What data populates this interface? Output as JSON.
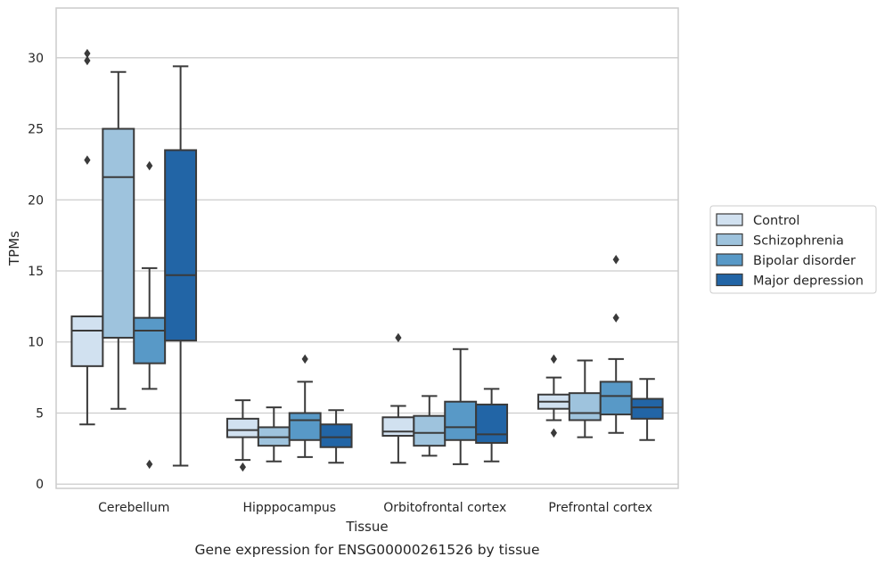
{
  "chart_data": {
    "type": "boxplot",
    "caption": "Gene expression for ENSG00000261526 by tissue",
    "xlabel": "Tissue",
    "ylabel": "TPMs",
    "ylim": [
      -0.3,
      33.5
    ],
    "yticks": [
      0,
      5,
      10,
      15,
      20,
      25,
      30
    ],
    "grid": "horizontal",
    "legend_position": "right",
    "categories": [
      "Cerebellum",
      "Hipppocampus",
      "Orbitofrontal cortex",
      "Prefrontal cortex"
    ],
    "series": [
      {
        "name": "Control",
        "color": "#d1e1f0",
        "boxes": [
          {
            "whisker_low": 4.2,
            "q1": 8.3,
            "median": 10.8,
            "q3": 11.8,
            "whisker_high": 11.8,
            "outliers": [
              30.3,
              29.8,
              22.8
            ]
          },
          {
            "whisker_low": 1.7,
            "q1": 3.3,
            "median": 3.8,
            "q3": 4.6,
            "whisker_high": 5.9,
            "outliers": [
              1.2
            ]
          },
          {
            "whisker_low": 1.5,
            "q1": 3.4,
            "median": 3.7,
            "q3": 4.7,
            "whisker_high": 5.5,
            "outliers": [
              10.3
            ]
          },
          {
            "whisker_low": 4.5,
            "q1": 5.3,
            "median": 5.8,
            "q3": 6.3,
            "whisker_high": 7.5,
            "outliers": [
              8.8,
              3.6
            ]
          }
        ]
      },
      {
        "name": "Schizophrenia",
        "color": "#9ec3dd",
        "boxes": [
          {
            "whisker_low": 5.3,
            "q1": 10.3,
            "median": 21.6,
            "q3": 25.0,
            "whisker_high": 29.0,
            "outliers": []
          },
          {
            "whisker_low": 1.6,
            "q1": 2.7,
            "median": 3.3,
            "q3": 4.0,
            "whisker_high": 5.4,
            "outliers": []
          },
          {
            "whisker_low": 2.0,
            "q1": 2.7,
            "median": 3.6,
            "q3": 4.8,
            "whisker_high": 6.2,
            "outliers": []
          },
          {
            "whisker_low": 3.3,
            "q1": 4.5,
            "median": 5.0,
            "q3": 6.4,
            "whisker_high": 8.7,
            "outliers": []
          }
        ]
      },
      {
        "name": "Bipolar disorder",
        "color": "#5899c7",
        "boxes": [
          {
            "whisker_low": 6.7,
            "q1": 8.5,
            "median": 10.8,
            "q3": 11.7,
            "whisker_high": 15.2,
            "outliers": [
              22.4,
              1.4
            ]
          },
          {
            "whisker_low": 1.9,
            "q1": 3.1,
            "median": 4.5,
            "q3": 5.0,
            "whisker_high": 7.2,
            "outliers": [
              8.8
            ]
          },
          {
            "whisker_low": 1.4,
            "q1": 3.1,
            "median": 4.0,
            "q3": 5.8,
            "whisker_high": 9.5,
            "outliers": []
          },
          {
            "whisker_low": 3.6,
            "q1": 4.9,
            "median": 6.2,
            "q3": 7.2,
            "whisker_high": 8.8,
            "outliers": [
              15.8,
              11.7
            ]
          }
        ]
      },
      {
        "name": "Major depression",
        "color": "#2265a6",
        "boxes": [
          {
            "whisker_low": 1.3,
            "q1": 10.1,
            "median": 14.7,
            "q3": 23.5,
            "whisker_high": 29.4,
            "outliers": []
          },
          {
            "whisker_low": 1.5,
            "q1": 2.6,
            "median": 3.3,
            "q3": 4.2,
            "whisker_high": 5.2,
            "outliers": []
          },
          {
            "whisker_low": 1.6,
            "q1": 2.9,
            "median": 3.5,
            "q3": 5.6,
            "whisker_high": 6.7,
            "outliers": []
          },
          {
            "whisker_low": 3.1,
            "q1": 4.6,
            "median": 5.4,
            "q3": 6.0,
            "whisker_high": 7.4,
            "outliers": []
          }
        ]
      }
    ]
  }
}
